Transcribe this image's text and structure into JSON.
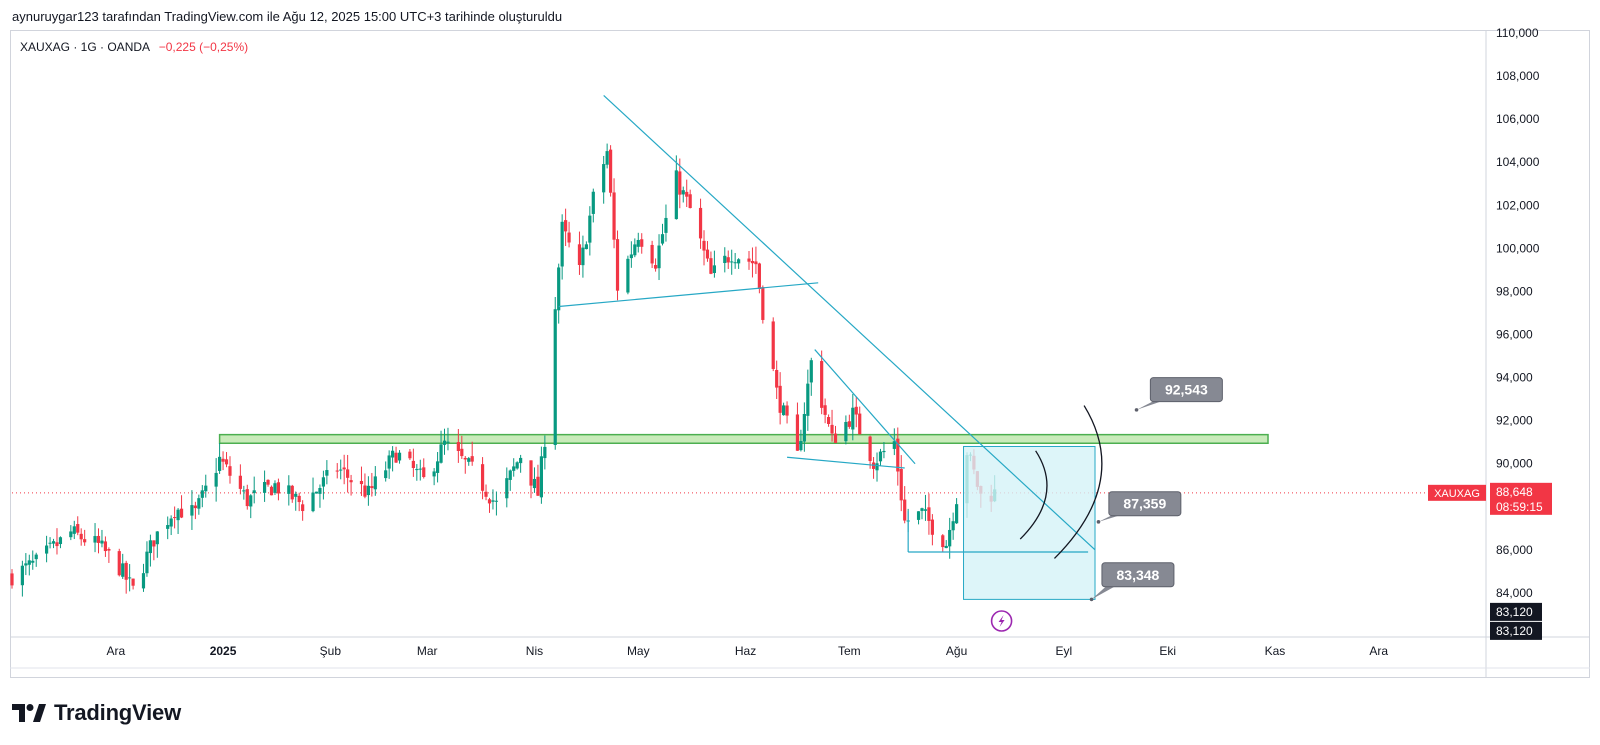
{
  "caption": "aynuruygar123 tarafından TradingView.com ile Ağu 12, 2025 15:00 UTC+3 tarihinde oluşturuldu",
  "legend": {
    "symbol_line": "XAUXAG · 1G · OANDA",
    "change": "−0,225 (−0,25%)"
  },
  "brand": {
    "name": "TradingView"
  },
  "colors": {
    "up": "#089981",
    "down": "#f23645",
    "trend": "#26a8c5",
    "zone_fill": "#b7e4a3",
    "zone_stroke": "#4caf50",
    "target_fill": "#d4f3f7",
    "label_bg": "#868993",
    "badge": "#f23645"
  },
  "icons": {
    "flash": "lightning-icon"
  },
  "chart_data": {
    "type": "candlestick",
    "symbol": "XAUXAG",
    "interval": "1G",
    "source": "OANDA",
    "ylim": [
      82000,
      110000
    ],
    "y_ticks": [
      "84,000",
      "86,000",
      "88,000",
      "90,000",
      "92,000",
      "94,000",
      "96,000",
      "98,000",
      "100,000",
      "102,000",
      "104,000",
      "106,000",
      "108,000",
      "110,000"
    ],
    "x_ticks": [
      {
        "label": "Ara",
        "date": "2024-12-01"
      },
      {
        "label": "2025",
        "date": "2025-01-01",
        "bold": true
      },
      {
        "label": "Şub",
        "date": "2025-02-01"
      },
      {
        "label": "Mar",
        "date": "2025-03-01"
      },
      {
        "label": "Nis",
        "date": "2025-04-01"
      },
      {
        "label": "May",
        "date": "2025-05-01"
      },
      {
        "label": "Haz",
        "date": "2025-06-01"
      },
      {
        "label": "Tem",
        "date": "2025-07-01"
      },
      {
        "label": "Ağu",
        "date": "2025-08-01"
      },
      {
        "label": "Eyl",
        "date": "2025-09-01"
      },
      {
        "label": "Eki",
        "date": "2025-10-01"
      },
      {
        "label": "Kas",
        "date": "2025-11-01"
      },
      {
        "label": "Ara",
        "date": "2025-12-01"
      }
    ],
    "x_range": [
      "2024-11-01",
      "2026-01-01"
    ],
    "price_path": [
      [
        "2024-11-01",
        84800
      ],
      [
        "2024-11-08",
        85400
      ],
      [
        "2024-11-18",
        86800
      ],
      [
        "2024-11-26",
        86200
      ],
      [
        "2024-12-02",
        85200
      ],
      [
        "2024-12-06",
        84100
      ],
      [
        "2024-12-12",
        86500
      ],
      [
        "2024-12-18",
        87900
      ],
      [
        "2024-12-24",
        87700
      ],
      [
        "2024-12-31",
        90200
      ],
      [
        "2025-01-08",
        88300
      ],
      [
        "2025-01-16",
        89000
      ],
      [
        "2025-01-24",
        88100
      ],
      [
        "2025-02-03",
        89800
      ],
      [
        "2025-02-12",
        88600
      ],
      [
        "2025-02-20",
        90500
      ],
      [
        "2025-02-28",
        89200
      ],
      [
        "2025-03-06",
        90900
      ],
      [
        "2025-03-14",
        89700
      ],
      [
        "2025-03-21",
        88100
      ],
      [
        "2025-03-28",
        90400
      ],
      [
        "2025-04-02",
        88600
      ],
      [
        "2025-04-04",
        91200
      ],
      [
        "2025-04-07",
        97400
      ],
      [
        "2025-04-09",
        100900
      ],
      [
        "2025-04-14",
        98900
      ],
      [
        "2025-04-18",
        102300
      ],
      [
        "2025-04-22",
        104500
      ],
      [
        "2025-04-25",
        98200
      ],
      [
        "2025-05-01",
        100700
      ],
      [
        "2025-05-06",
        99400
      ],
      [
        "2025-05-12",
        103200
      ],
      [
        "2025-05-16",
        101800
      ],
      [
        "2025-05-22",
        98700
      ],
      [
        "2025-05-28",
        99800
      ],
      [
        "2025-06-04",
        99300
      ],
      [
        "2025-06-06",
        97100
      ],
      [
        "2025-06-10",
        93300
      ],
      [
        "2025-06-16",
        90300
      ],
      [
        "2025-06-20",
        94700
      ],
      [
        "2025-06-26",
        91100
      ],
      [
        "2025-07-02",
        92300
      ],
      [
        "2025-07-08",
        90100
      ],
      [
        "2025-07-14",
        91000
      ],
      [
        "2025-07-17",
        87300
      ],
      [
        "2025-07-22",
        87700
      ],
      [
        "2025-07-29",
        86300
      ],
      [
        "2025-08-04",
        90600
      ],
      [
        "2025-08-08",
        88500
      ],
      [
        "2025-08-12",
        88648
      ]
    ],
    "last_price": "88,648",
    "countdown": "08:59:15",
    "low_marker": [
      "83,120",
      "83,120"
    ],
    "resistance_zone": {
      "from": 90950,
      "to": 91350,
      "x_start": "2024-12-31",
      "x_end": "2025-10-30"
    },
    "trendlines": [
      {
        "from": [
          "2025-04-21",
          107100
        ],
        "to": [
          "2025-09-10",
          86000
        ]
      },
      {
        "from": [
          "2025-06-21",
          95300
        ],
        "to": [
          "2025-07-20",
          90000
        ]
      },
      {
        "from": [
          "2025-04-08",
          97300
        ],
        "to": [
          "2025-06-22",
          98400
        ]
      },
      {
        "from": [
          "2025-06-13",
          90300
        ],
        "to": [
          "2025-07-17",
          89800
        ]
      },
      {
        "from": [
          "2025-07-18",
          87800
        ],
        "to": [
          "2025-07-18",
          85900
        ]
      },
      {
        "from": [
          "2025-07-18",
          85900
        ],
        "to": [
          "2025-09-08",
          85900
        ]
      }
    ],
    "target_box": {
      "x_start": "2025-08-03",
      "x_end": "2025-09-10",
      "top": 90800,
      "bottom": 83700
    },
    "arcs": [
      {
        "x": "2025-08-25",
        "top": 90600,
        "bottom": 86500
      },
      {
        "x": "2025-09-08",
        "top": 92700,
        "bottom": 85600
      }
    ],
    "callouts": [
      {
        "text": "92,543",
        "point": [
          "2025-09-22",
          92500
        ],
        "label_x": "2025-09-26",
        "label_y": 94000
      },
      {
        "text": "87,359",
        "point": [
          "2025-09-11",
          87300
        ],
        "label_x": "2025-09-14",
        "label_y": 88700
      },
      {
        "text": "83,348",
        "point": [
          "2025-09-09",
          83700
        ],
        "label_x": "2025-09-12",
        "label_y": 85400
      }
    ]
  }
}
